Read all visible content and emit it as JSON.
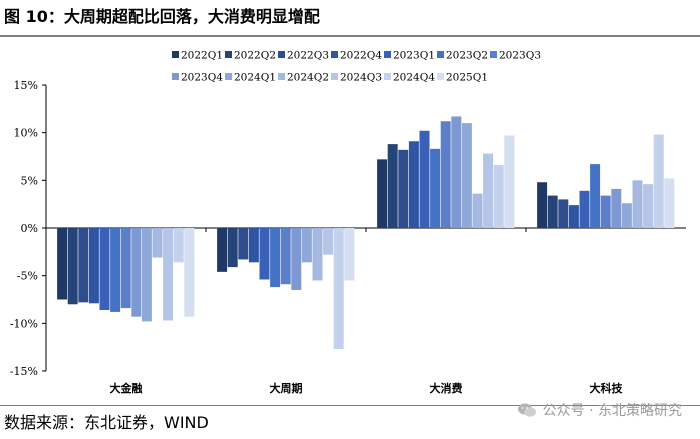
{
  "figure": {
    "title": "图 10：大周期超配比回落，大消费明显增配",
    "source": "数据来源：东北证券，WIND",
    "watermark": "公众号 · 东北策略研究",
    "watermark_icon": "wechat-icon"
  },
  "chart_data": {
    "type": "bar",
    "title": "",
    "xlabel": "",
    "ylabel": "",
    "ylim": [
      -15,
      15
    ],
    "yticks": [
      -15,
      -10,
      -5,
      0,
      5,
      10,
      15
    ],
    "ytick_labels": [
      "-15%",
      "-10%",
      "-5%",
      "0%",
      "5%",
      "10%",
      "15%"
    ],
    "legend_position": "top",
    "grid": false,
    "categories": [
      "大金融",
      "大周期",
      "大消费",
      "大科技"
    ],
    "series": [
      {
        "name": "2022Q1",
        "color": "#203864",
        "values": [
          -7.5,
          -4.6,
          7.2,
          4.8
        ]
      },
      {
        "name": "2022Q2",
        "color": "#264478",
        "values": [
          -8.0,
          -4.1,
          8.8,
          3.4
        ]
      },
      {
        "name": "2022Q3",
        "color": "#2E4D8F",
        "values": [
          -7.8,
          -3.3,
          8.2,
          3.0
        ]
      },
      {
        "name": "2022Q4",
        "color": "#2F55A4",
        "values": [
          -7.9,
          -3.6,
          9.1,
          2.4
        ]
      },
      {
        "name": "2023Q1",
        "color": "#3A60B8",
        "values": [
          -8.6,
          -5.4,
          10.2,
          3.9
        ]
      },
      {
        "name": "2023Q2",
        "color": "#4472C4",
        "values": [
          -8.8,
          -6.2,
          8.3,
          6.7
        ]
      },
      {
        "name": "2023Q3",
        "color": "#5B7FC9",
        "values": [
          -8.4,
          -5.9,
          11.2,
          3.4
        ]
      },
      {
        "name": "2023Q4",
        "color": "#7E99D2",
        "values": [
          -9.3,
          -6.5,
          11.7,
          4.1
        ]
      },
      {
        "name": "2024Q1",
        "color": "#8FA8DA",
        "values": [
          -9.8,
          -3.6,
          11.0,
          2.6
        ]
      },
      {
        "name": "2024Q2",
        "color": "#A4B8E1",
        "values": [
          -3.1,
          -5.5,
          3.6,
          5.0
        ]
      },
      {
        "name": "2024Q3",
        "color": "#B4C5E7",
        "values": [
          -9.7,
          -2.8,
          7.8,
          4.6
        ]
      },
      {
        "name": "2024Q4",
        "color": "#C3D1EC",
        "values": [
          -3.6,
          -12.7,
          6.6,
          9.8
        ]
      },
      {
        "name": "2025Q1",
        "color": "#D5DFF1",
        "values": [
          -9.3,
          -5.5,
          9.7,
          5.2
        ]
      }
    ]
  }
}
